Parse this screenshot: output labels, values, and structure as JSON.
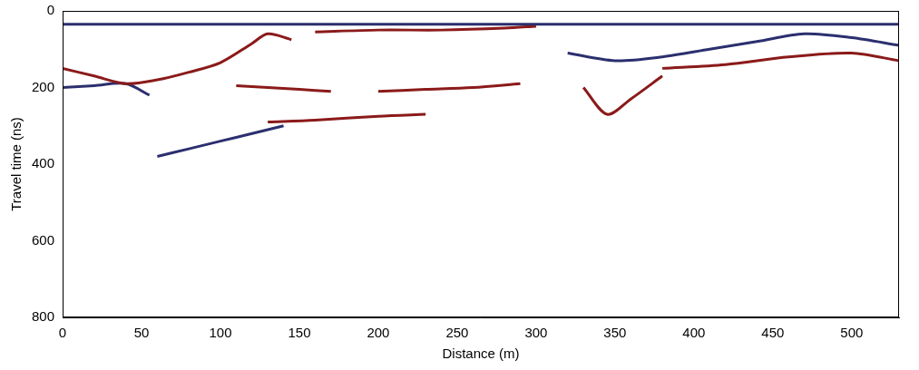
{
  "chart_data": {
    "type": "line",
    "x_label": "Distance (m)",
    "y_label": "Travel time (ns)",
    "xlim": [
      0,
      530
    ],
    "xticks": [
      0,
      50,
      100,
      150,
      200,
      250,
      300,
      350,
      400,
      450,
      500
    ],
    "ylim": [
      0,
      800
    ],
    "yticks": [
      0,
      200,
      400,
      600,
      800
    ],
    "grid": false,
    "series": [
      {
        "color": "#2b2f6e",
        "x": [
          0,
          530
        ],
        "values": [
          35,
          35
        ]
      },
      {
        "color": "#8b1a1a",
        "x": [
          0,
          20,
          40,
          60,
          80,
          100,
          120,
          130,
          145
        ],
        "values": [
          150,
          170,
          190,
          180,
          160,
          135,
          85,
          60,
          75
        ]
      },
      {
        "color": "#2b2f6e",
        "x": [
          0,
          20,
          40,
          55
        ],
        "values": [
          200,
          195,
          190,
          220
        ]
      },
      {
        "color": "#2b2f6e",
        "x": [
          60,
          80,
          100,
          120,
          140
        ],
        "values": [
          380,
          360,
          340,
          320,
          300
        ]
      },
      {
        "color": "#8b1a1a",
        "x": [
          110,
          130,
          150,
          170
        ],
        "values": [
          195,
          200,
          205,
          210
        ]
      },
      {
        "color": "#8b1a1a",
        "x": [
          130,
          160,
          200,
          230
        ],
        "values": [
          290,
          285,
          275,
          270
        ]
      },
      {
        "color": "#8b1a1a",
        "x": [
          160,
          200,
          240,
          280,
          300
        ],
        "values": [
          55,
          50,
          50,
          45,
          40
        ]
      },
      {
        "color": "#8b1a1a",
        "x": [
          200,
          230,
          260,
          290
        ],
        "values": [
          210,
          205,
          200,
          190
        ]
      },
      {
        "color": "#2b2f6e",
        "x": [
          320,
          350,
          380,
          410,
          440,
          470,
          500,
          530
        ],
        "values": [
          110,
          130,
          120,
          100,
          80,
          60,
          70,
          90
        ]
      },
      {
        "color": "#8b1a1a",
        "x": [
          330,
          345,
          360,
          380
        ],
        "values": [
          200,
          270,
          230,
          170
        ]
      },
      {
        "color": "#8b1a1a",
        "x": [
          380,
          420,
          460,
          500,
          530
        ],
        "values": [
          150,
          140,
          120,
          110,
          130
        ]
      }
    ]
  }
}
